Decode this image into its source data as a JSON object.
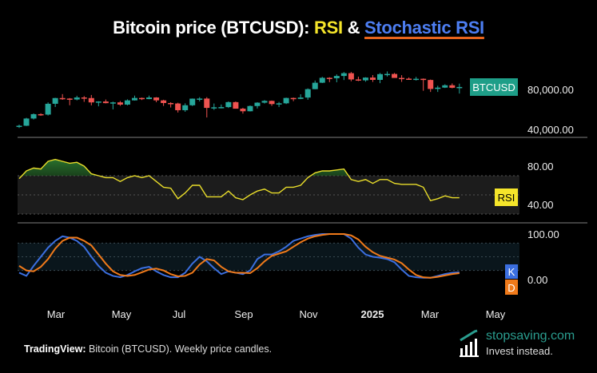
{
  "title": {
    "part1": "Bitcoin price (BTCUSD): ",
    "rsi": "RSI",
    "amp": " & ",
    "stoch": "Stochastic RSI"
  },
  "colors": {
    "up": "#26a69a",
    "down": "#ef5350",
    "rsi": "#e8dc2a",
    "k": "#3b6fe0",
    "d": "#f07a1a",
    "badge_price": "#1e9e88"
  },
  "chart_data": [
    {
      "type": "candlestick",
      "series_label": "BTCUSD",
      "y_scale": "log",
      "y_ticks": [
        "80,000.00",
        "40,000.00"
      ],
      "y_tick_values": [
        80000,
        40000
      ],
      "x_ticks": [
        "Mar",
        "May",
        "Jul",
        "Sep",
        "Nov",
        "2025",
        "Mar",
        "May"
      ],
      "interval": "weekly",
      "ohlc": [
        [
          42000,
          43500,
          41000,
          42600
        ],
        [
          42600,
          48900,
          42400,
          48300
        ],
        [
          48300,
          52800,
          47500,
          52100
        ],
        [
          52100,
          52900,
          50600,
          51700
        ],
        [
          51700,
          63900,
          50900,
          62400
        ],
        [
          62400,
          69200,
          59000,
          68900
        ],
        [
          68900,
          73800,
          66800,
          68300
        ],
        [
          68300,
          68900,
          60800,
          67200
        ],
        [
          67200,
          71700,
          66200,
          69600
        ],
        [
          69600,
          71300,
          64500,
          68900
        ],
        [
          68900,
          72700,
          60700,
          63900
        ],
        [
          63900,
          65200,
          59700,
          64900
        ],
        [
          64900,
          67200,
          62800,
          63100
        ],
        [
          63100,
          64700,
          56600,
          63900
        ],
        [
          63900,
          65400,
          60200,
          61500
        ],
        [
          61500,
          67400,
          60700,
          66200
        ],
        [
          66200,
          71900,
          66000,
          69000
        ],
        [
          69000,
          69500,
          66600,
          67700
        ],
        [
          67700,
          71900,
          67500,
          69600
        ],
        [
          69600,
          70000,
          64100,
          66200
        ],
        [
          66200,
          66900,
          60100,
          63200
        ],
        [
          63200,
          64100,
          58500,
          62700
        ],
        [
          62700,
          63500,
          53600,
          55800
        ],
        [
          55800,
          62900,
          54300,
          60800
        ],
        [
          60800,
          68400,
          60000,
          68200
        ],
        [
          68200,
          70000,
          65000,
          68300
        ],
        [
          68300,
          70000,
          49200,
          58100
        ],
        [
          58100,
          62700,
          56100,
          58700
        ],
        [
          58700,
          61600,
          57600,
          58900
        ],
        [
          58900,
          65000,
          58000,
          64200
        ],
        [
          64200,
          64900,
          57300,
          57300
        ],
        [
          57300,
          58200,
          52600,
          54800
        ],
        [
          54800,
          60600,
          54600,
          60000
        ],
        [
          60000,
          64100,
          57500,
          63600
        ],
        [
          63600,
          66500,
          62700,
          65600
        ],
        [
          65600,
          66000,
          60200,
          62100
        ],
        [
          62100,
          64400,
          58900,
          62900
        ],
        [
          62900,
          69400,
          62100,
          69000
        ],
        [
          69000,
          69500,
          65300,
          67900
        ],
        [
          67900,
          73600,
          67600,
          69500
        ],
        [
          69500,
          81500,
          66900,
          80400
        ],
        [
          80400,
          93400,
          80300,
          89900
        ],
        [
          89900,
          99600,
          89400,
          97900
        ],
        [
          97900,
          98900,
          90800,
          97200
        ],
        [
          97200,
          103900,
          90600,
          101100
        ],
        [
          101100,
          108200,
          94200,
          106100
        ],
        [
          106100,
          108300,
          92200,
          95200
        ],
        [
          95200,
          99900,
          92500,
          93700
        ],
        [
          93700,
          98900,
          91500,
          98300
        ],
        [
          98300,
          102700,
          91200,
          94500
        ],
        [
          94500,
          106400,
          89300,
          104400
        ],
        [
          104400,
          109400,
          100100,
          104700
        ],
        [
          104700,
          106500,
          97800,
          97700
        ],
        [
          97700,
          102500,
          91200,
          96500
        ],
        [
          96500,
          98600,
          94600,
          96100
        ],
        [
          96100,
          99500,
          93400,
          96300
        ],
        [
          96300,
          96800,
          78200,
          94300
        ],
        [
          94300,
          95000,
          76600,
          80700
        ],
        [
          80700,
          85300,
          76600,
          82600
        ],
        [
          82600,
          87500,
          82000,
          86000
        ],
        [
          86000,
          88800,
          81600,
          82400
        ],
        [
          82400,
          88500,
          74500,
          83500
        ]
      ]
    },
    {
      "type": "line",
      "series_label": "RSI",
      "y_ticks": [
        "80.00",
        "40.00"
      ],
      "y_tick_values": [
        80,
        40
      ],
      "band": [
        30,
        70
      ],
      "midline": 50,
      "values": [
        67,
        75,
        78,
        77,
        85,
        87,
        85,
        83,
        84,
        80,
        72,
        70,
        68,
        68,
        64,
        68,
        70,
        68,
        70,
        64,
        58,
        57,
        46,
        52,
        60,
        60,
        48,
        48,
        48,
        54,
        47,
        45,
        50,
        54,
        56,
        52,
        52,
        58,
        58,
        60,
        68,
        73,
        75,
        75,
        76,
        77,
        66,
        64,
        66,
        62,
        66,
        66,
        62,
        61,
        61,
        61,
        58,
        44,
        46,
        49,
        47,
        47
      ]
    },
    {
      "type": "line",
      "y_ticks": [
        "100.00",
        "0.00"
      ],
      "y_tick_values": [
        100,
        0
      ],
      "band": [
        20,
        80
      ],
      "midline": 50,
      "series": [
        {
          "name": "K",
          "values": [
            15,
            8,
            30,
            50,
            70,
            85,
            95,
            92,
            85,
            72,
            50,
            30,
            15,
            8,
            5,
            10,
            18,
            25,
            28,
            18,
            10,
            5,
            5,
            15,
            35,
            50,
            40,
            25,
            12,
            18,
            15,
            12,
            20,
            45,
            55,
            55,
            62,
            72,
            85,
            90,
            95,
            98,
            100,
            100,
            100,
            100,
            90,
            70,
            55,
            50,
            48,
            45,
            38,
            22,
            8,
            5,
            4,
            4,
            8,
            12,
            15,
            16
          ]
        },
        {
          "name": "D",
          "values": [
            30,
            20,
            18,
            28,
            45,
            68,
            85,
            92,
            92,
            85,
            75,
            55,
            35,
            18,
            10,
            8,
            10,
            16,
            22,
            24,
            20,
            12,
            7,
            8,
            15,
            33,
            45,
            42,
            28,
            18,
            15,
            15,
            14,
            25,
            40,
            52,
            57,
            62,
            72,
            82,
            90,
            95,
            98,
            100,
            100,
            100,
            97,
            88,
            72,
            60,
            52,
            48,
            44,
            36,
            22,
            10,
            5,
            4,
            6,
            9,
            12,
            14
          ]
        }
      ]
    }
  ],
  "footer": {
    "source_label": "TradingView:",
    "source_text": " Bitcoin (BTCUSD). Weekly price candles."
  },
  "logo": {
    "domain": "stopsaving.com",
    "tagline": "Invest instead."
  }
}
